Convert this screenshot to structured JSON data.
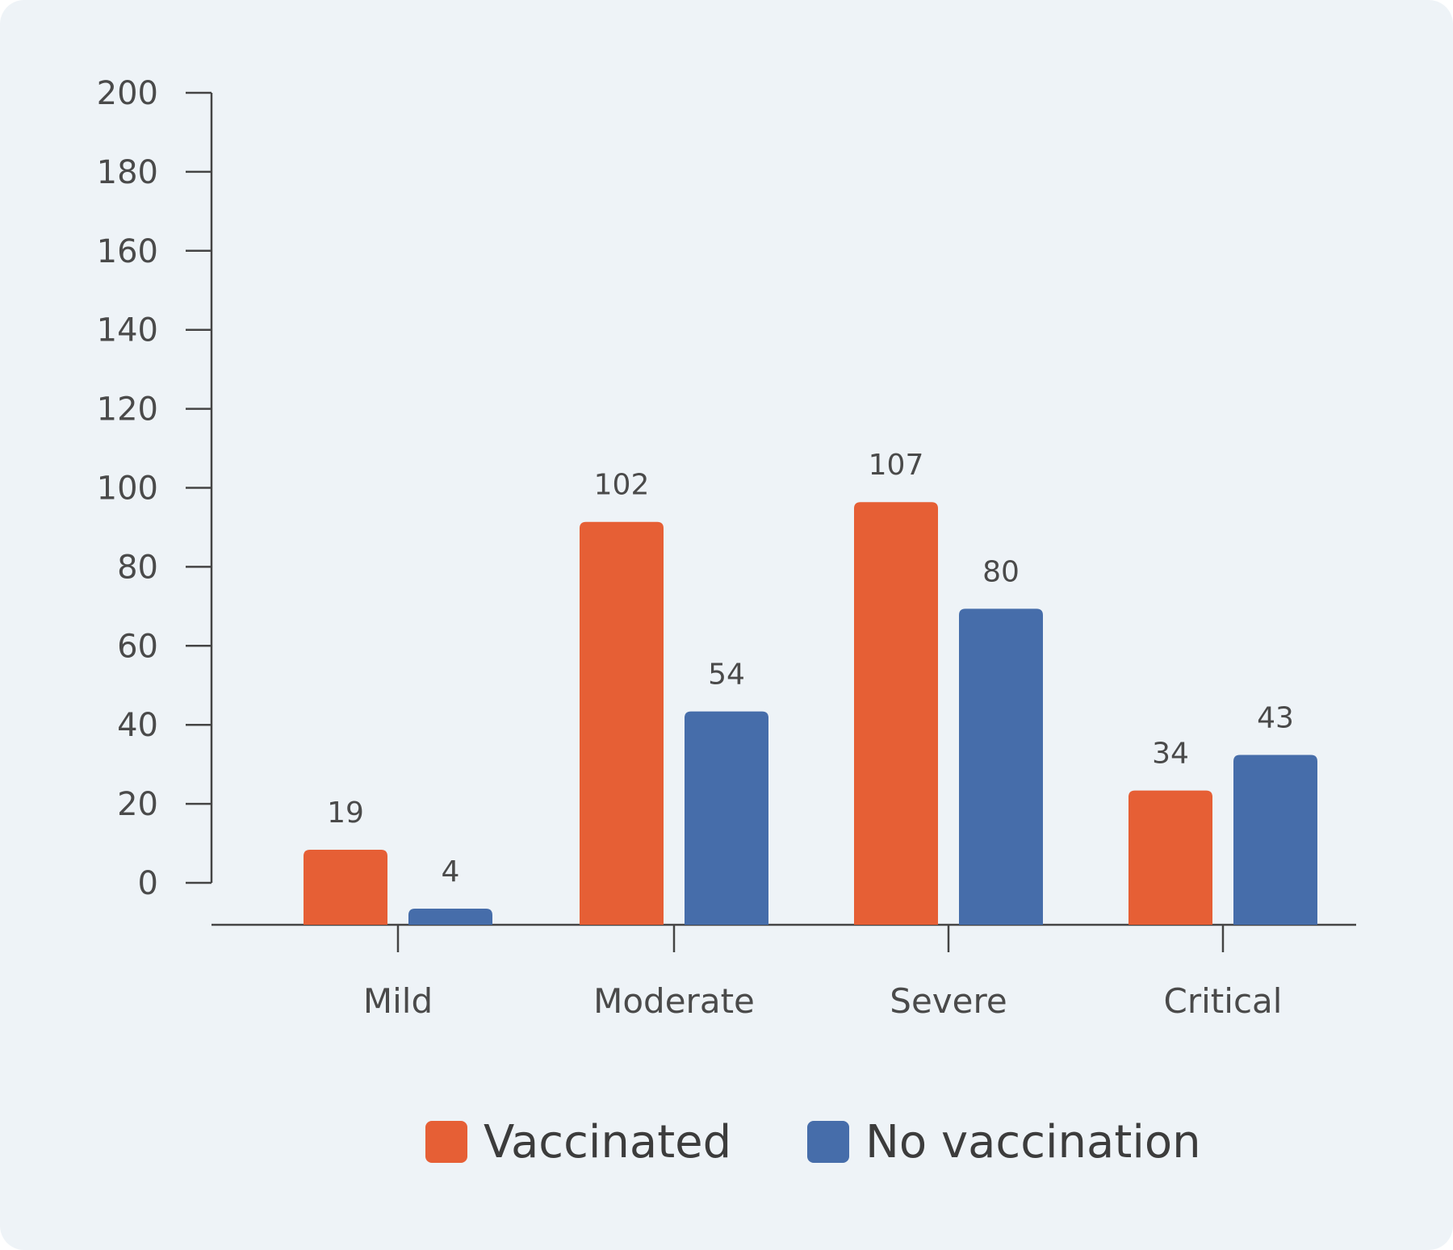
{
  "chart_data": {
    "type": "bar",
    "categories": [
      "Mild",
      "Moderate",
      "Severe",
      "Critical"
    ],
    "series": [
      {
        "name": "Vaccinated",
        "values": [
          19,
          102,
          107,
          34
        ],
        "color": "#e65f35"
      },
      {
        "name": "No vaccination",
        "values": [
          4,
          54,
          80,
          43
        ],
        "color": "#466daa"
      }
    ],
    "data_labels": [
      [
        "19",
        "102",
        "107",
        "34"
      ],
      [
        "4",
        "54",
        "80",
        "43"
      ]
    ],
    "y_ticks": [
      "0",
      "20",
      "40",
      "60",
      "80",
      "100",
      "120",
      "140",
      "160",
      "180",
      "200"
    ],
    "ylim": [
      0,
      200
    ],
    "grid": false,
    "legend_position": "bottom",
    "title": "",
    "xlabel": "",
    "ylabel": ""
  },
  "colors": {
    "background": "#eef3f7",
    "axis": "#444444",
    "text": "#4a4a4a"
  }
}
